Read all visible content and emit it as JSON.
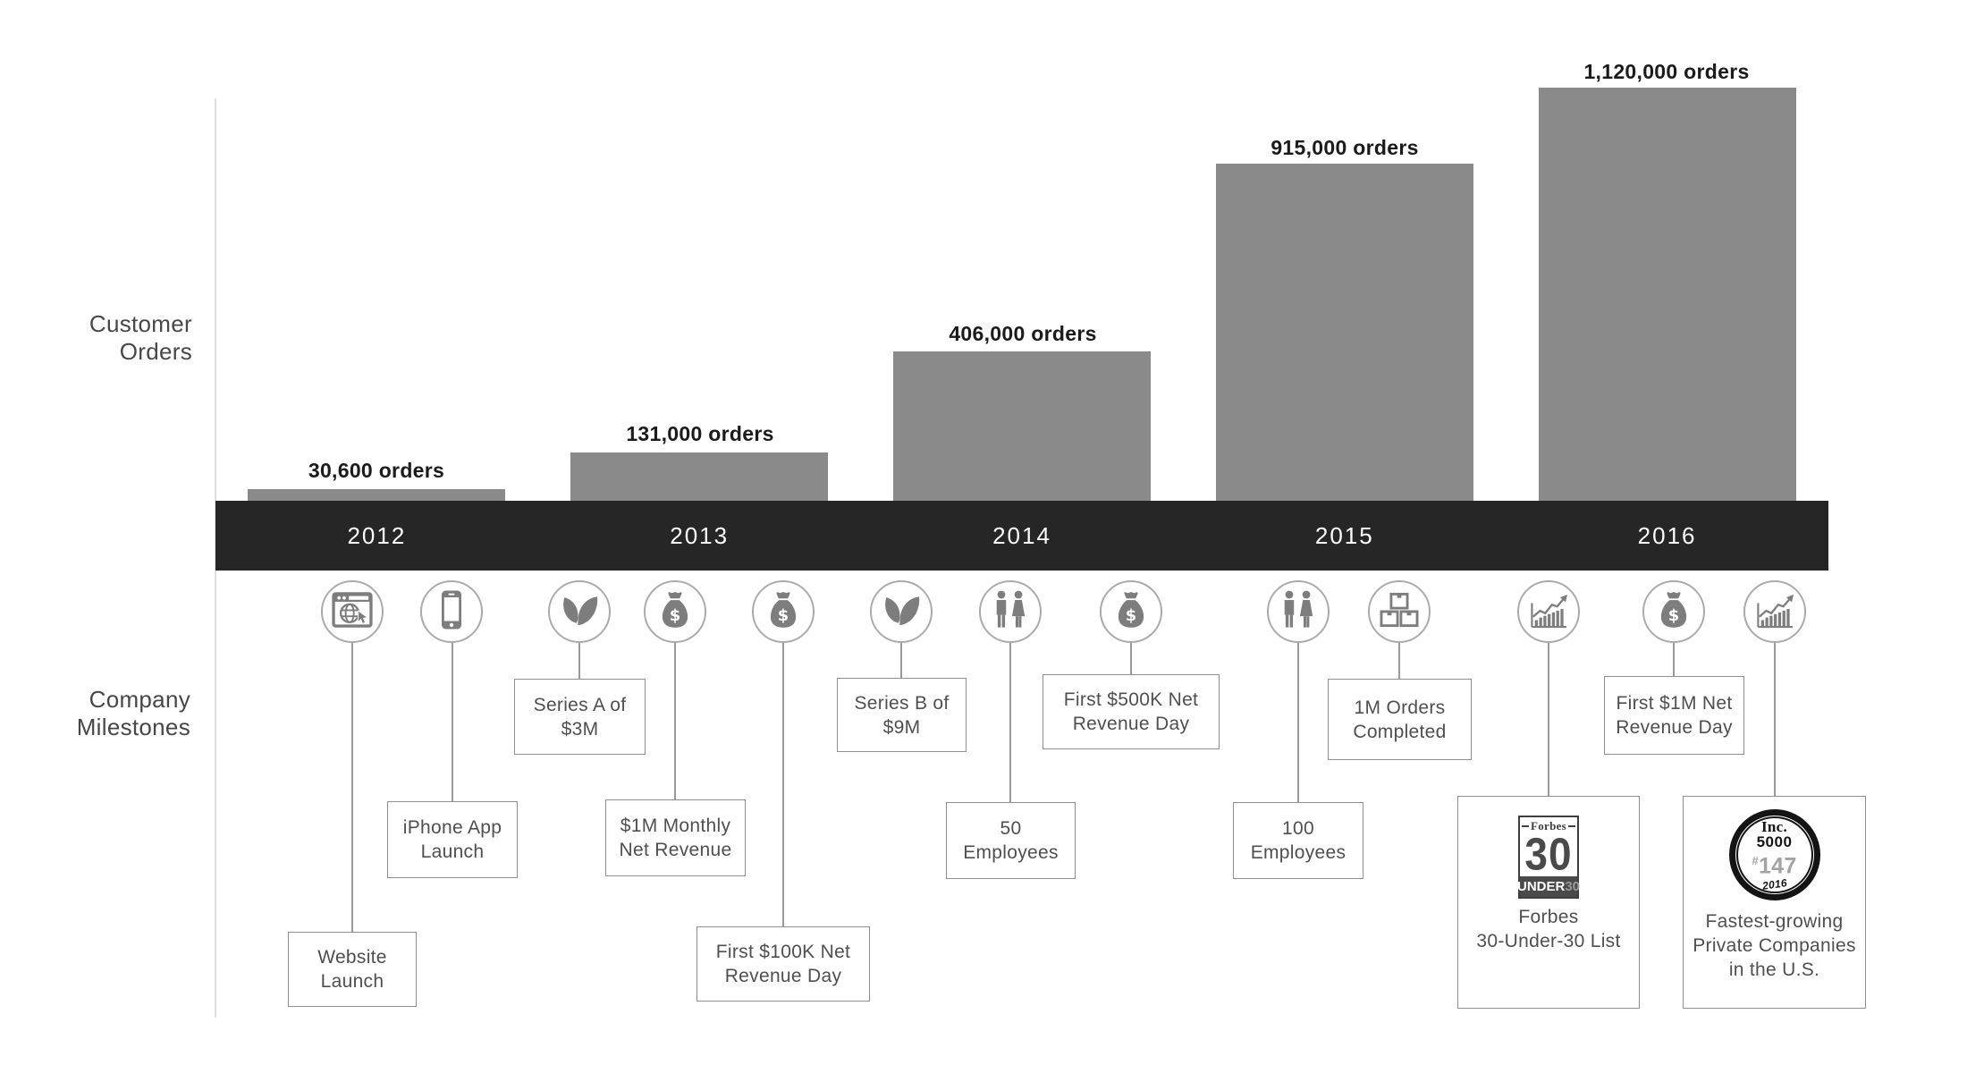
{
  "chart_data": {
    "type": "bar",
    "categories": [
      "2012",
      "2013",
      "2014",
      "2015",
      "2016"
    ],
    "values": [
      30600,
      131000,
      406000,
      915000,
      1120000
    ],
    "bar_labels": [
      "30,600 orders",
      "131,000 orders",
      "406,000 orders",
      "915,000 orders",
      "1,120,000 orders"
    ],
    "ylabel": "Customer Orders",
    "xlabel": "Company Milestones",
    "ylim": [
      0,
      1120000
    ],
    "grid": false,
    "legend": "none",
    "bar_color": "#8a8a8a",
    "timeline_color": "#262626"
  },
  "left_labels": {
    "customer_orders": [
      "Customer",
      "Orders"
    ],
    "company_milestones": [
      "Company",
      "Milestones"
    ]
  },
  "timeline": {
    "years": [
      "2012",
      "2013",
      "2014",
      "2015",
      "2016"
    ]
  },
  "milestones": [
    {
      "year": "2012",
      "icon": "browser-globe-icon",
      "lines": [
        "Website",
        "Launch"
      ]
    },
    {
      "year": "2012",
      "icon": "smartphone-icon",
      "lines": [
        "iPhone App",
        "Launch"
      ]
    },
    {
      "year": "2013",
      "icon": "leaf-icon",
      "lines": [
        "Series A of",
        "$3M"
      ]
    },
    {
      "year": "2013",
      "icon": "money-bag-icon",
      "lines": [
        "$1M Monthly",
        "Net Revenue"
      ]
    },
    {
      "year": "2013",
      "icon": "money-bag-icon",
      "lines": [
        "First $100K Net",
        "Revenue Day"
      ]
    },
    {
      "year": "2014",
      "icon": "leaf-icon",
      "lines": [
        "Series B of",
        "$9M"
      ]
    },
    {
      "year": "2014",
      "icon": "people-icon",
      "lines": [
        "50",
        "Employees"
      ]
    },
    {
      "year": "2014",
      "icon": "money-bag-icon",
      "lines": [
        "First $500K Net",
        "Revenue Day"
      ]
    },
    {
      "year": "2015",
      "icon": "people-icon",
      "lines": [
        "100",
        "Employees"
      ]
    },
    {
      "year": "2015",
      "icon": "boxes-icon",
      "lines": [
        "1M Orders",
        "Completed"
      ]
    },
    {
      "year": "2016",
      "icon": "growth-chart-icon",
      "lines": [
        "Forbes",
        "30-Under-30 List"
      ]
    },
    {
      "year": "2016",
      "icon": "money-bag-icon",
      "lines": [
        "First $1M Net",
        "Revenue Day"
      ]
    },
    {
      "year": "2016",
      "icon": "growth-chart-icon",
      "lines": [
        "Fastest-growing",
        "Private Companies",
        "in the U.S."
      ]
    }
  ],
  "forbes_logo": {
    "masthead": "Forbes",
    "number": "30",
    "band_left": "UNDER",
    "band_right": "30"
  },
  "inc_logo": {
    "name": "Inc.",
    "list": "5000",
    "rank_symbol": "#",
    "rank": "147",
    "year": "2016"
  },
  "colors": {
    "bar": "#8a8a8a",
    "timeline": "#262626",
    "icon": "#7d7d7d",
    "box_border": "#8f8f8f",
    "box_text": "#4f4f4f",
    "order_label_text": "#1b1b1b"
  }
}
